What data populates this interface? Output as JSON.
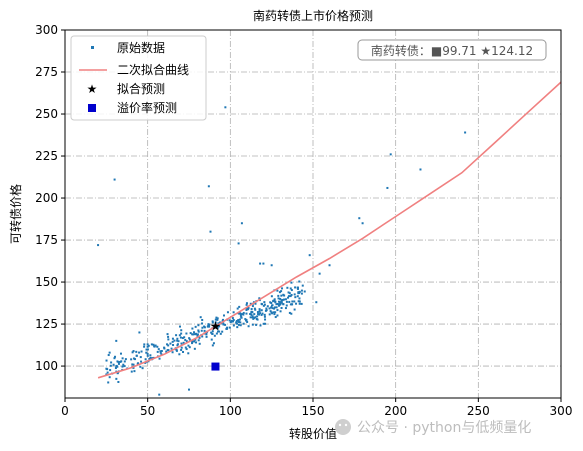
{
  "chart_data": {
    "type": "scatter",
    "title": "南药转债上市价格预测",
    "xlabel": "转股价值",
    "ylabel": "可转债价格",
    "xlim": [
      0,
      300
    ],
    "ylim": [
      81,
      300
    ],
    "x_ticks": [
      "0",
      "50",
      "100",
      "150",
      "200",
      "250",
      "300"
    ],
    "y_ticks": [
      "100",
      "125",
      "150",
      "175",
      "200",
      "225",
      "250",
      "275",
      "300"
    ],
    "grid": true,
    "legend_position": "top-left",
    "series": [
      {
        "name": "原始数据",
        "kind": "scatter",
        "color": "#1f77b4",
        "points": [
          [
            20,
            172
          ],
          [
            30,
            211
          ],
          [
            87,
            207
          ],
          [
            97,
            254
          ],
          [
            88,
            180
          ],
          [
            107,
            185
          ],
          [
            105,
            173
          ],
          [
            197,
            226
          ],
          [
            215,
            217
          ],
          [
            242,
            239
          ],
          [
            195,
            206
          ],
          [
            178,
            188
          ],
          [
            180,
            185
          ],
          [
            118,
            161
          ],
          [
            120,
            161
          ],
          [
            125,
            160
          ],
          [
            148,
            166
          ],
          [
            160,
            160
          ],
          [
            154,
            155
          ],
          [
            130,
            144
          ],
          [
            152,
            138
          ],
          [
            75,
            86
          ],
          [
            57,
            83
          ],
          [
            25,
            95
          ],
          [
            32,
            96
          ],
          [
            42,
            97
          ],
          [
            27,
            108
          ],
          [
            31,
            115
          ],
          [
            45,
            120
          ],
          [
            36,
            100
          ],
          [
            40,
            104
          ]
        ],
        "cluster": {
          "x_range": [
            25,
            145
          ],
          "center_intercept": 88,
          "center_slope": 0.38,
          "spread": 6,
          "count": 430,
          "color": "#1f77b4"
        }
      },
      {
        "name": "二次拟合曲线",
        "kind": "line",
        "color": "#f08080",
        "points": [
          [
            20,
            93
          ],
          [
            40,
            99
          ],
          [
            60,
            107
          ],
          [
            80,
            117
          ],
          [
            100,
            129
          ],
          [
            120,
            141
          ],
          [
            140,
            153
          ],
          [
            160,
            164
          ],
          [
            180,
            176
          ],
          [
            200,
            189
          ],
          [
            220,
            202
          ],
          [
            240,
            215
          ],
          [
            260,
            233
          ],
          [
            280,
            251
          ],
          [
            300,
            269
          ]
        ]
      },
      {
        "name": "拟合预测",
        "kind": "marker",
        "marker": "star",
        "color": "#000000",
        "points": [
          [
            91,
            124.12
          ]
        ]
      },
      {
        "name": "溢价率预测",
        "kind": "marker",
        "marker": "square",
        "color": "#0000cd",
        "points": [
          [
            91,
            99.71
          ]
        ]
      }
    ],
    "annotation": {
      "text": "南药转债：■99.71 ★124.12"
    }
  },
  "watermark": {
    "text": "公众号 · python与低频量化"
  }
}
